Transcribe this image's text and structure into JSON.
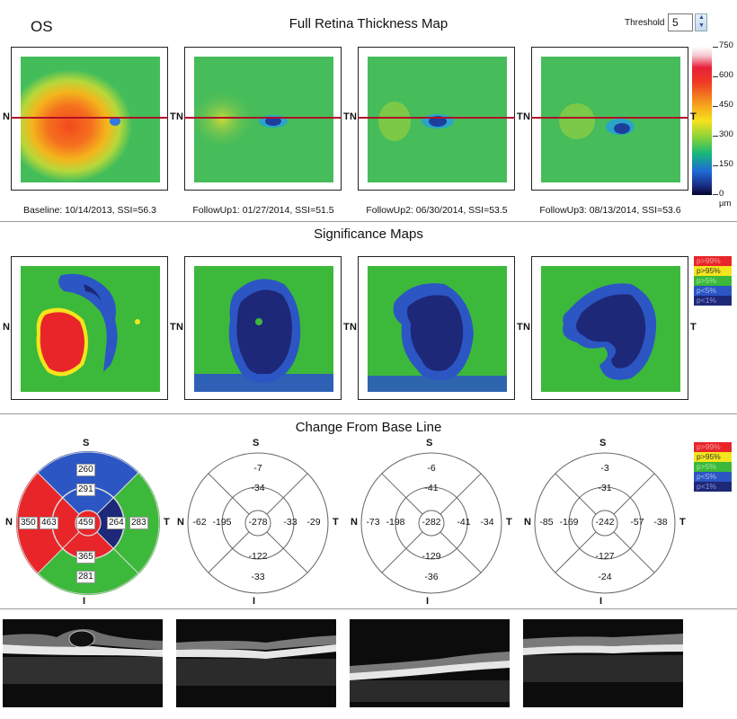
{
  "header": {
    "eye": "OS",
    "title": "Full Retina Thickness Map",
    "threshold_label": "Threshold",
    "threshold_value": "5"
  },
  "thickness_scale": {
    "labels": [
      "750",
      "600",
      "450",
      "300",
      "150",
      "0 µm"
    ]
  },
  "scans": [
    {
      "caption": "Baseline: 10/14/2013, SSI=56.3"
    },
    {
      "caption": "FollowUp1: 01/27/2014, SSI=51.5"
    },
    {
      "caption": "FollowUp2: 06/30/2014, SSI=53.5"
    },
    {
      "caption": "FollowUp3: 08/13/2014, SSI=53.6"
    }
  ],
  "orientation": {
    "nasal": "N",
    "temporal": "T",
    "superior": "S",
    "inferior": "I"
  },
  "significance": {
    "title": "Significance Maps",
    "legend": [
      {
        "label": "p>99%",
        "color": "#e8262a"
      },
      {
        "label": "p>95%",
        "color": "#f4e51c"
      },
      {
        "label": "p>5%",
        "color": "#3cb93a"
      },
      {
        "label": "p<5%",
        "color": "#2c56c4"
      },
      {
        "label": "p<1%",
        "color": "#1e2878"
      }
    ]
  },
  "change": {
    "title": "Change From Base Line",
    "legend": [
      {
        "label": "p>99%",
        "color": "#e8262a"
      },
      {
        "label": "p>95%",
        "color": "#f4e51c"
      },
      {
        "label": "p>5%",
        "color": "#3cb93a"
      },
      {
        "label": "p<5%",
        "color": "#2c56c4"
      },
      {
        "label": "p<1%",
        "color": "#1e2878"
      }
    ],
    "baseline_grid": {
      "outer_superior": "260",
      "outer_nasal": "350",
      "outer_temporal": "283",
      "outer_inferior": "281",
      "inner_superior": "291",
      "inner_nasal": "463",
      "inner_temporal": "264",
      "inner_inferior": "365",
      "center": "459"
    },
    "followups": [
      {
        "outer_superior": "-7",
        "inner_superior": "-34",
        "outer_nasal": "-62",
        "inner_nasal": "-195",
        "center": "-278",
        "inner_temporal": "-33",
        "outer_temporal": "-29",
        "inner_inferior": "-122",
        "outer_inferior": "-33"
      },
      {
        "outer_superior": "-6",
        "inner_superior": "-41",
        "outer_nasal": "-73",
        "inner_nasal": "-198",
        "center": "-282",
        "inner_temporal": "-41",
        "outer_temporal": "-34",
        "inner_inferior": "-129",
        "outer_inferior": "-36"
      },
      {
        "outer_superior": "-3",
        "inner_superior": "-31",
        "outer_nasal": "-85",
        "inner_nasal": "-169",
        "center": "-242",
        "inner_temporal": "-57",
        "outer_temporal": "-38",
        "inner_inferior": "-127",
        "outer_inferior": "-24"
      }
    ]
  }
}
